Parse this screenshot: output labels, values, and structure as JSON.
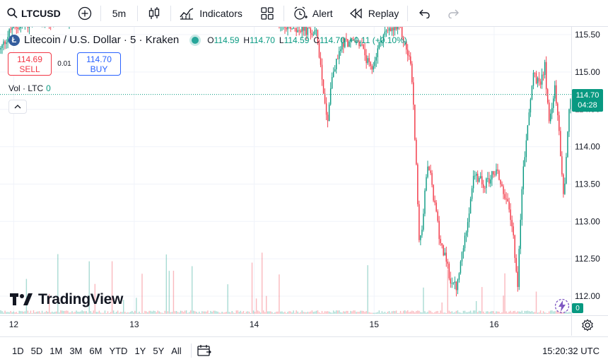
{
  "toolbar": {
    "symbol": "LTCUSD",
    "interval": "5m",
    "indicators_label": "Indicators",
    "alert_label": "Alert",
    "replay_label": "Replay"
  },
  "legend": {
    "title": "Litecoin / U.S. Dollar · 5 · Kraken",
    "coin_letter": "Ł",
    "o_key": "O",
    "o_val": "114.59",
    "h_key": "H",
    "h_val": "114.70",
    "l_key": "L",
    "l_val": "114.59",
    "c_key": "C",
    "c_val": "114.70",
    "change": "+0.11 (+0.10%)"
  },
  "trade": {
    "sell_price": "114.69",
    "sell_label": "SELL",
    "spread": "0.01",
    "buy_price": "114.70",
    "buy_label": "BUY"
  },
  "volume": {
    "label": "Vol · LTC",
    "value": "0"
  },
  "price_tag": {
    "price": "114.70",
    "countdown": "04:28"
  },
  "vol_tag": "0",
  "logo_text": "TradingView",
  "bottom": {
    "ranges": [
      "1D",
      "5D",
      "1M",
      "3M",
      "6M",
      "YTD",
      "1Y",
      "5Y",
      "All"
    ],
    "clock": "15:20:32 UTC"
  },
  "colors": {
    "up": "#089981",
    "down": "#f23645",
    "accent": "#2962ff"
  },
  "chart_data": {
    "type": "candlestick",
    "y_axis_ticks": [
      115.5,
      115.0,
      114.5,
      114.0,
      113.5,
      113.0,
      112.5,
      112.0
    ],
    "y_range": [
      111.95,
      115.55
    ],
    "x_axis_ticks": [
      {
        "label": "12",
        "pos": 0.024
      },
      {
        "label": "13",
        "pos": 0.235
      },
      {
        "label": "14",
        "pos": 0.445
      },
      {
        "label": "15",
        "pos": 0.655
      },
      {
        "label": "16",
        "pos": 0.865
      }
    ],
    "last_price": 114.7,
    "anchors": [
      [
        0.0,
        115.3
      ],
      [
        0.02,
        115.6
      ],
      [
        0.1,
        115.7
      ],
      [
        0.25,
        115.9
      ],
      [
        0.44,
        115.8
      ],
      [
        0.555,
        115.5
      ],
      [
        0.566,
        114.8
      ],
      [
        0.573,
        114.3
      ],
      [
        0.58,
        114.9
      ],
      [
        0.6,
        115.4
      ],
      [
        0.63,
        115.4
      ],
      [
        0.65,
        115.0
      ],
      [
        0.67,
        115.5
      ],
      [
        0.7,
        115.6
      ],
      [
        0.72,
        115.1
      ],
      [
        0.728,
        114.0
      ],
      [
        0.735,
        112.6
      ],
      [
        0.75,
        113.8
      ],
      [
        0.77,
        112.8
      ],
      [
        0.79,
        112.2
      ],
      [
        0.8,
        112.1
      ],
      [
        0.815,
        112.8
      ],
      [
        0.83,
        113.6
      ],
      [
        0.85,
        113.5
      ],
      [
        0.87,
        113.7
      ],
      [
        0.89,
        113.2
      ],
      [
        0.9,
        112.8
      ],
      [
        0.907,
        112.1
      ],
      [
        0.915,
        113.5
      ],
      [
        0.925,
        114.3
      ],
      [
        0.935,
        115.0
      ],
      [
        0.945,
        114.8
      ],
      [
        0.955,
        115.1
      ],
      [
        0.962,
        114.3
      ],
      [
        0.972,
        114.8
      ],
      [
        0.98,
        114.2
      ],
      [
        0.988,
        113.3
      ],
      [
        0.994,
        114.1
      ],
      [
        1.0,
        114.7
      ]
    ]
  }
}
